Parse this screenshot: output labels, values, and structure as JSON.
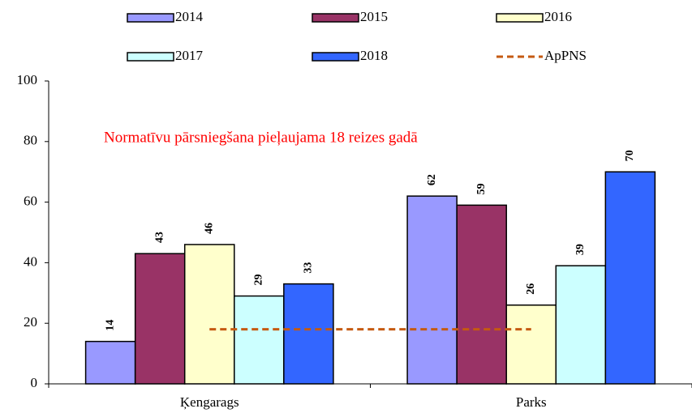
{
  "chart_data": {
    "type": "bar",
    "annotation": "Normatīvu pārsniegšana pieļaujama 18 reizes gadā",
    "categories": [
      "Ķengarags",
      "Parks"
    ],
    "series": [
      {
        "name": "2014",
        "color": "#9999ff",
        "values": [
          14,
          62
        ]
      },
      {
        "name": "2015",
        "color": "#993366",
        "values": [
          43,
          59
        ]
      },
      {
        "name": "2016",
        "color": "#ffffcc",
        "values": [
          46,
          26
        ]
      },
      {
        "name": "2017",
        "color": "#ccffff",
        "values": [
          29,
          39
        ]
      },
      {
        "name": "2018",
        "color": "#3366ff",
        "values": [
          33,
          70
        ]
      }
    ],
    "reference_lines": [
      {
        "name": "ApPNS",
        "value": 18,
        "color": "#c55a11"
      }
    ],
    "ylim": [
      0,
      100
    ],
    "yticks": [
      0,
      20,
      40,
      60,
      80,
      100
    ],
    "grid": false
  }
}
